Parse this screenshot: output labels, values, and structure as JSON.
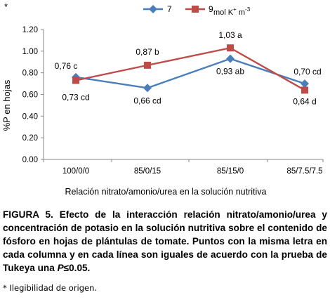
{
  "marker": "*",
  "chart_data": {
    "type": "line",
    "categories": [
      "100/0/0",
      "85/0/15",
      "85/15/0",
      "85/7.5/7.5"
    ],
    "series": [
      {
        "name": "7",
        "color": "#4a7ebb",
        "marker": "diamond",
        "values": [
          0.76,
          0.66,
          0.93,
          0.7
        ],
        "labels": [
          "0,76 c",
          "0,66 cd",
          "0,93 ab",
          "0,70 cd"
        ]
      },
      {
        "name": "9",
        "color": "#be4b48",
        "marker": "square",
        "values": [
          0.73,
          0.87,
          1.03,
          0.64
        ],
        "labels": [
          "0,73 cd",
          "0,87 b",
          "1,03 a",
          "0,64 d"
        ]
      }
    ],
    "legend_suffix": "mol K",
    "legend_suffix_sup1": "+",
    "legend_suffix_mid": " m",
    "legend_suffix_sup2": "-3",
    "ylabel": "%P en hojas",
    "xlabel": "Relación nitrato/amonio/urea en la solución nutritiva",
    "ylim": [
      0,
      1.2
    ],
    "yticks": [
      "0.00",
      "0.20",
      "0.40",
      "0.60",
      "0.80",
      "1.00",
      "1.20"
    ],
    "ytick_values": [
      0,
      0.2,
      0.4,
      0.6,
      0.8,
      1.0,
      1.2
    ],
    "legend_position": "top",
    "grid": false
  },
  "caption": {
    "text": "FIGURA 5. Efecto de la interacción  relación nitrato/amonio/urea y  concentración de potasio en la solución nutritiva sobre el contenido de fósforo en hojas de plántulas de tomate. Puntos con la misma letra en cada columna  y en cada línea son iguales de acuerdo con la prueba de Tukeya una ",
    "p": "P",
    "threshold": "≤0.05."
  },
  "footnote": "* Ilegibilidad de origen."
}
